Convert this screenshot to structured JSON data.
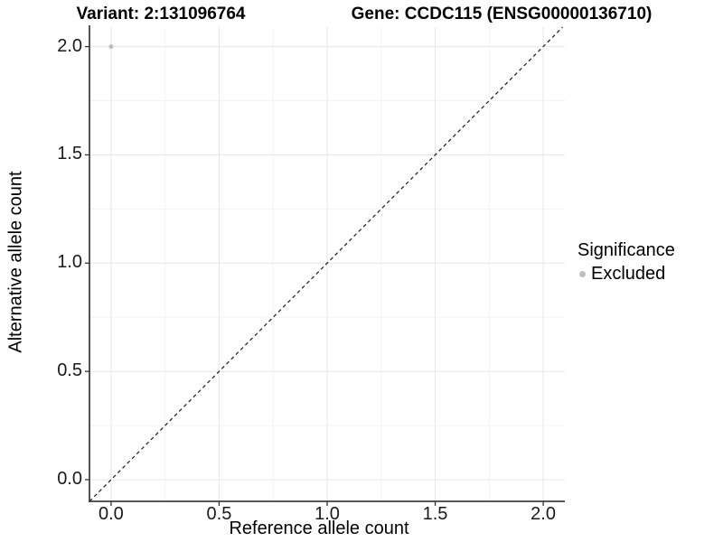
{
  "chart_data": {
    "type": "scatter",
    "titles": {
      "left": "Variant: 2:131096764",
      "right": "Gene: CCDC115 (ENSG00000136710)"
    },
    "xlabel": "Reference allele count",
    "ylabel": "Alternative allele count",
    "xlim": [
      -0.1,
      2.1
    ],
    "ylim": [
      -0.1,
      2.09
    ],
    "x_ticks": [
      0,
      0.5,
      1,
      1.5,
      2
    ],
    "y_ticks": [
      0,
      0.5,
      1,
      1.5,
      2
    ],
    "x_tick_labels": [
      "0.0",
      "0.5",
      "1.0",
      "1.5",
      "2.0"
    ],
    "y_tick_labels": [
      "0.0",
      "0.5",
      "1.0",
      "1.5",
      "2.0"
    ],
    "minor_ticks": [
      0.25,
      0.75,
      1.25,
      1.75
    ],
    "grid": true,
    "points": [
      {
        "x": 0.0,
        "y": 2.0,
        "group": "Excluded"
      }
    ],
    "reference_line": {
      "slope": 1,
      "intercept": 0,
      "style": "dashed"
    },
    "legend": {
      "title": "Significance",
      "position": "right",
      "items": [
        {
          "label": "Excluded",
          "color": "#bebebe",
          "shape": "circle"
        }
      ]
    },
    "colors": {
      "point_excluded": "#bebebe",
      "grid_major": "#e8e8e8",
      "grid_minor": "#f3f3f3",
      "axis": "#404040",
      "tick": "#333333",
      "dashed_line": "#1a1a1a",
      "background": "#ffffff"
    }
  }
}
